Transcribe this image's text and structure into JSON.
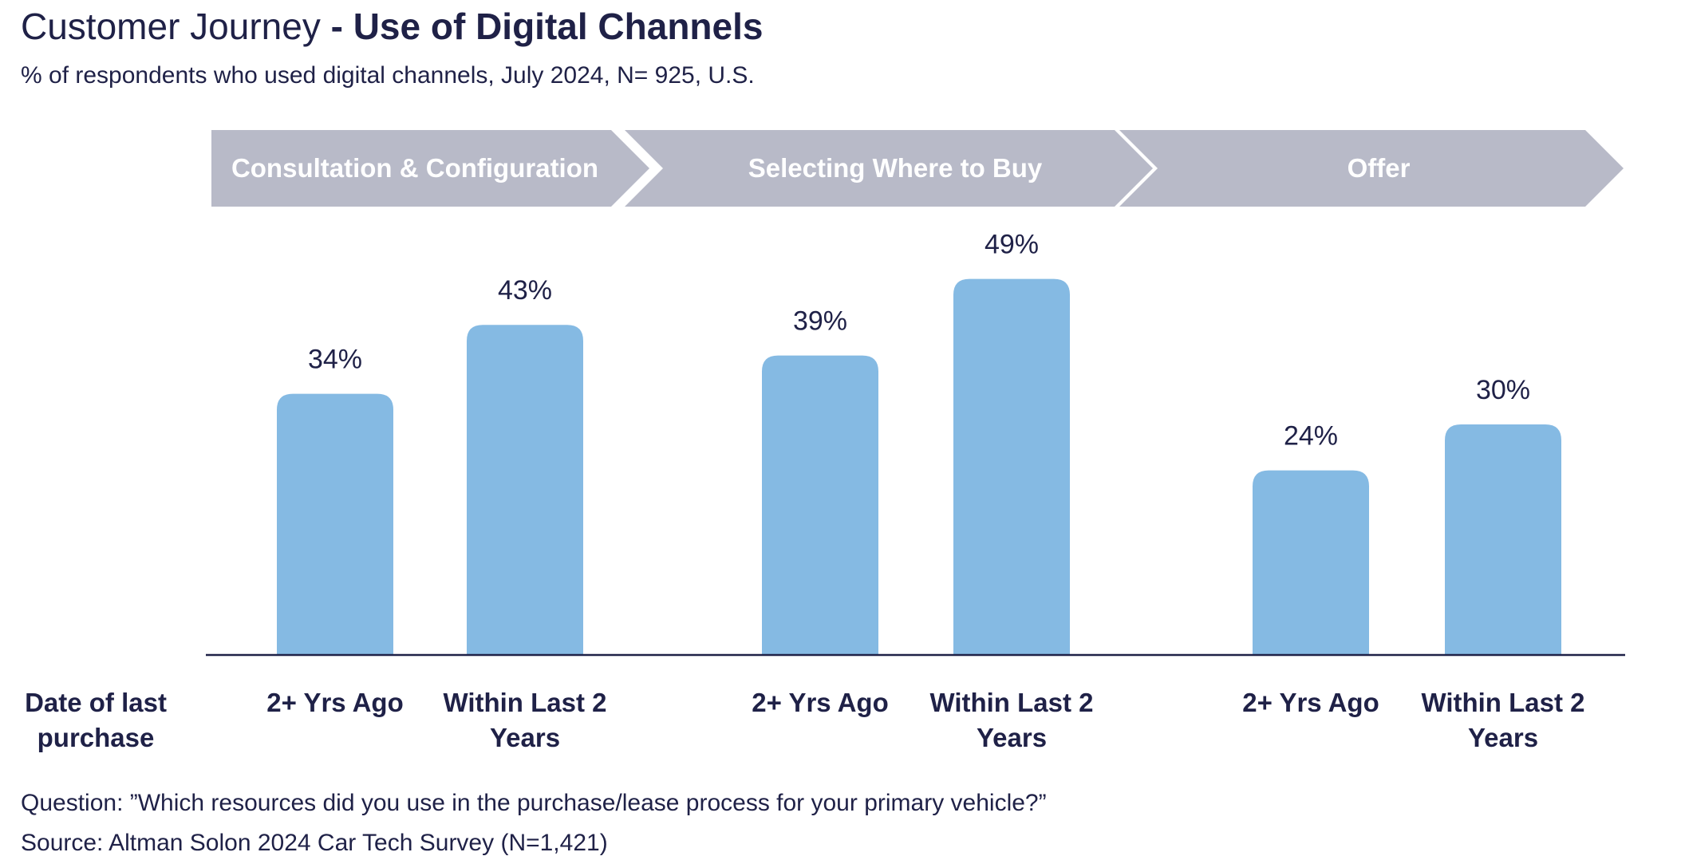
{
  "title": {
    "light": "Customer Journey",
    "bold": "- Use of Digital Channels"
  },
  "subtitle": "% of respondents who used digital channels, July 2024, N= 925, U.S.",
  "row_label": [
    "Date of last",
    "purchase"
  ],
  "footnotes": {
    "question": "Question: ”Which resources did you use in the purchase/lease process for your primary vehicle?”",
    "source": "Source: Altman Solon 2024 Car Tech Survey (N=1,421)"
  },
  "colors": {
    "bar": "#85bae3",
    "chevron": "#b8bac8",
    "chevron_text": "#ffffff",
    "text": "#1f2147",
    "axis": "#1f2147"
  },
  "chart_data": {
    "type": "bar",
    "title": "Customer Journey - Use of Digital Channels",
    "stages": [
      "Consultation & Configuration",
      "Selecting Where to Buy",
      "Offer"
    ],
    "categories": [
      [
        "2+ Yrs Ago"
      ],
      [
        "Within Last 2",
        "Years"
      ],
      [
        "2+ Yrs Ago"
      ],
      [
        "Within Last 2",
        "Years"
      ],
      [
        "2+ Yrs Ago"
      ],
      [
        "Within Last 2",
        "Years"
      ]
    ],
    "values": [
      34,
      43,
      39,
      49,
      24,
      30
    ],
    "data_labels": [
      "34%",
      "43%",
      "39%",
      "49%",
      "24%",
      "30%"
    ],
    "unit": "%",
    "ylim": [
      0,
      50
    ],
    "grid": false,
    "legend": "none"
  }
}
